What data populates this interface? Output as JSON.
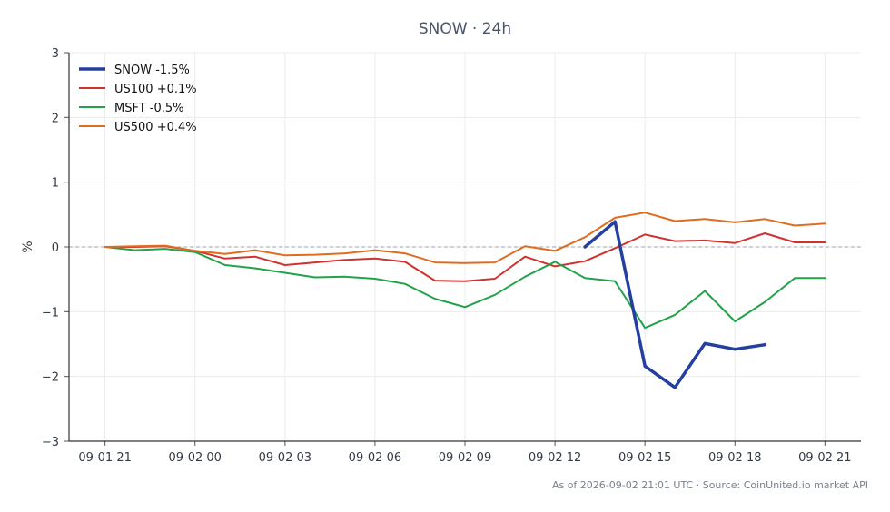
{
  "chart_data": {
    "type": "line",
    "title": "SNOW · 24h",
    "xlabel": "",
    "ylabel": "%",
    "x_tick_labels": [
      "09-01 21",
      "09-02 00",
      "09-02 03",
      "09-02 06",
      "09-02 09",
      "09-02 12",
      "09-02 15",
      "09-02 18",
      "09-02 21"
    ],
    "x_tick_hours": [
      0,
      3,
      6,
      9,
      12,
      15,
      18,
      21,
      24
    ],
    "xlim_hours": [
      -1.2,
      25.2
    ],
    "ylim": [
      -3,
      3
    ],
    "y_ticks": [
      3,
      2,
      1,
      0,
      -1,
      -2,
      -3
    ],
    "y_tick_labels": [
      "3",
      "2",
      "1",
      "0",
      "−1",
      "−2",
      "−3"
    ],
    "grid": true,
    "reference_line": 0,
    "legend_position": "top-left",
    "series": [
      {
        "name": "SNOW -1.5%",
        "color": "#2340a0",
        "width": 3.5,
        "x_hours": [
          16,
          17,
          18,
          19,
          20,
          21,
          22
        ],
        "values": [
          0.0,
          0.39,
          -1.84,
          -2.17,
          -1.49,
          -1.58,
          -1.51
        ]
      },
      {
        "name": "US100 +0.1%",
        "color": "#d0332f",
        "width": 2,
        "x_hours": [
          0,
          1,
          2,
          3,
          4,
          5,
          6,
          7,
          8,
          9,
          10,
          11,
          12,
          13,
          14,
          15,
          16,
          17,
          18,
          19,
          20,
          21,
          22,
          23,
          24
        ],
        "values": [
          0.0,
          0.0,
          0.01,
          -0.06,
          -0.18,
          -0.15,
          -0.28,
          -0.24,
          -0.2,
          -0.18,
          -0.23,
          -0.52,
          -0.53,
          -0.49,
          -0.15,
          -0.3,
          -0.22,
          -0.02,
          0.19,
          0.09,
          0.1,
          0.06,
          0.21,
          0.07,
          0.07
        ]
      },
      {
        "name": "MSFT -0.5%",
        "color": "#22a24a",
        "width": 2,
        "x_hours": [
          0,
          1,
          2,
          3,
          4,
          5,
          6,
          7,
          8,
          9,
          10,
          11,
          12,
          13,
          14,
          15,
          16,
          17,
          18,
          19,
          20,
          21,
          22,
          23,
          24
        ],
        "values": [
          0.0,
          -0.05,
          -0.03,
          -0.08,
          -0.28,
          -0.33,
          -0.4,
          -0.47,
          -0.46,
          -0.49,
          -0.57,
          -0.8,
          -0.93,
          -0.74,
          -0.46,
          -0.23,
          -0.48,
          -0.53,
          -1.25,
          -1.05,
          -0.68,
          -1.15,
          -0.85,
          -0.48,
          -0.48
        ]
      },
      {
        "name": "US500 +0.4%",
        "color": "#e06c1f",
        "width": 2,
        "x_hours": [
          0,
          1,
          2,
          3,
          4,
          5,
          6,
          7,
          8,
          9,
          10,
          11,
          12,
          13,
          14,
          15,
          16,
          17,
          18,
          19,
          20,
          21,
          22,
          23,
          24
        ],
        "values": [
          0.0,
          0.01,
          0.02,
          -0.06,
          -0.11,
          -0.05,
          -0.13,
          -0.12,
          -0.1,
          -0.05,
          -0.1,
          -0.24,
          -0.25,
          -0.24,
          0.01,
          -0.06,
          0.15,
          0.45,
          0.53,
          0.4,
          0.43,
          0.38,
          0.43,
          0.33,
          0.36
        ]
      }
    ],
    "footer": "As of 2026-09-02 21:01 UTC · Source: CoinUnited.io market API"
  }
}
